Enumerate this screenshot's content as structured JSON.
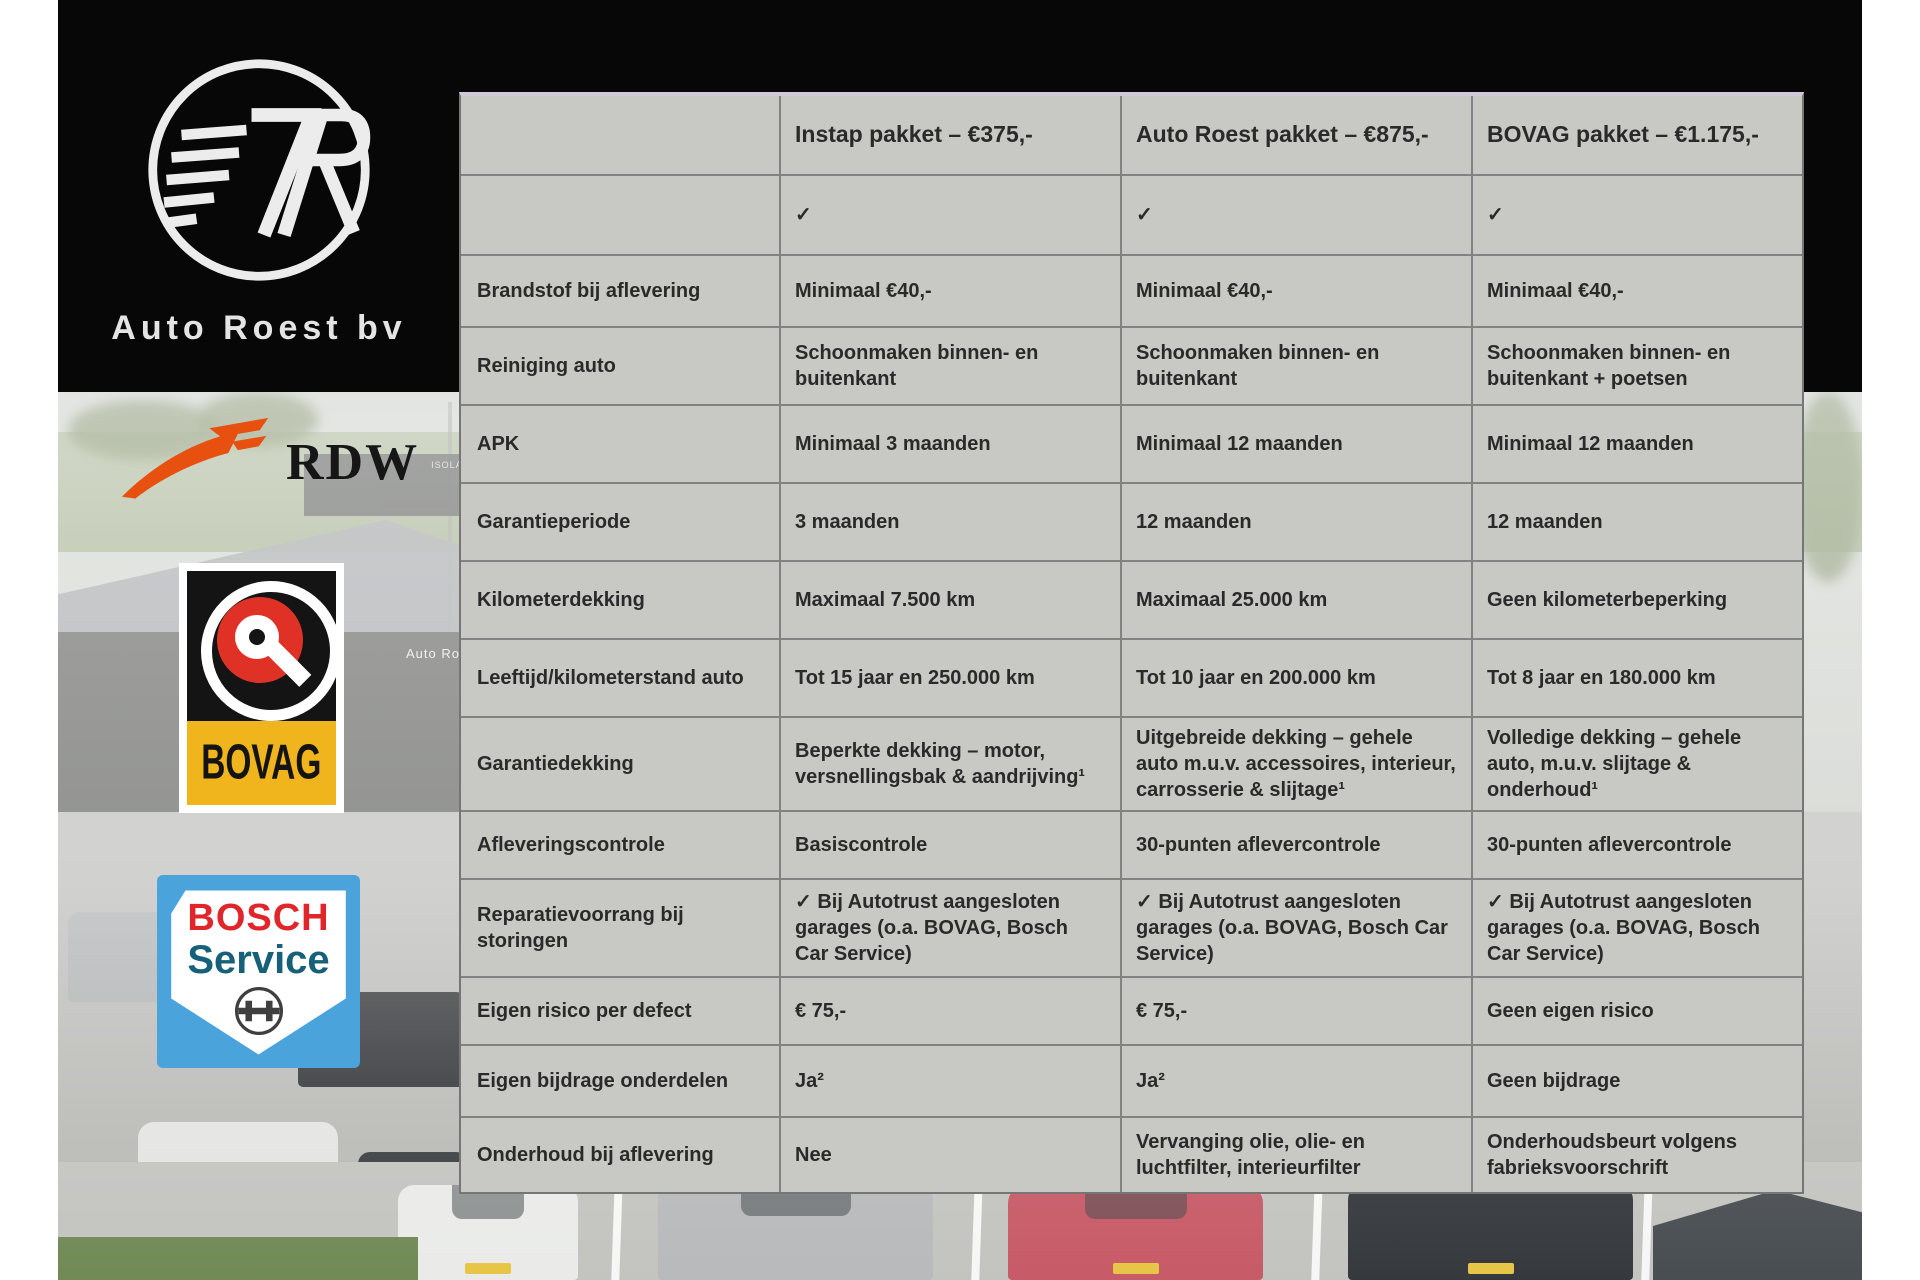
{
  "brand": {
    "name": "Auto Roest bv",
    "monogram": "7R"
  },
  "background_signs": {
    "showroom_sign": "Auto Ro",
    "distant_sign": "ISOLATIEBAL.NL"
  },
  "partners": {
    "rdw": {
      "label": "RDW",
      "accent": "#e8500f"
    },
    "bovag": {
      "label": "BOVAG",
      "red": "#e03127",
      "yellow": "#f0b41c"
    },
    "bosch": {
      "line1": "BOSCH",
      "line2": "Service",
      "red": "#e0262a",
      "blue": "#4ba3dc",
      "teal": "#176079"
    }
  },
  "table": {
    "columns": [
      "",
      "Instap pakket – €375,-",
      "Auto Roest pakket – €875,-",
      "BOVAG pakket – €1.175,-"
    ],
    "rows": [
      {
        "label": "",
        "values": [
          "✓",
          "✓",
          "✓"
        ]
      },
      {
        "label": "Brandstof bij aflevering",
        "values": [
          "Minimaal €40,-",
          "Minimaal €40,-",
          "Minimaal €40,-"
        ]
      },
      {
        "label": "Reiniging auto",
        "values": [
          "Schoonmaken binnen- en buitenkant",
          "Schoonmaken binnen- en buitenkant",
          "Schoonmaken binnen- en buitenkant + poetsen"
        ]
      },
      {
        "label": "APK",
        "values": [
          "Minimaal 3 maanden",
          "Minimaal 12 maanden",
          "Minimaal 12 maanden"
        ]
      },
      {
        "label": "Garantieperiode",
        "values": [
          "3 maanden",
          "12 maanden",
          "12 maanden"
        ]
      },
      {
        "label": "Kilometerdekking",
        "values": [
          "Maximaal 7.500 km",
          "Maximaal 25.000 km",
          "Geen kilometerbeperking"
        ]
      },
      {
        "label": "Leeftijd/kilometerstand auto",
        "values": [
          "Tot 15 jaar en 250.000 km",
          "Tot 10 jaar en 200.000 km",
          "Tot 8 jaar en 180.000 km"
        ]
      },
      {
        "label": "Garantiedekking",
        "values": [
          "Beperkte dekking – motor, versnellingsbak & aandrijving¹",
          "Uitgebreide dekking – gehele auto m.u.v. accessoires, interieur, carrosserie & slijtage¹",
          "Volledige dekking – gehele auto, m.u.v. slijtage & onderhoud¹"
        ]
      },
      {
        "label": "Afleveringscontrole",
        "values": [
          "Basiscontrole",
          "30-punten aflevercontrole",
          "30-punten aflevercontrole"
        ]
      },
      {
        "label": "Reparatievoorrang bij storingen",
        "values": [
          "✓ Bij Autotrust aangesloten garages (o.a. BOVAG, Bosch Car Service)",
          "✓ Bij Autotrust aangesloten garages (o.a. BOVAG, Bosch Car Service)",
          "✓ Bij Autotrust aangesloten garages (o.a. BOVAG, Bosch Car Service)"
        ]
      },
      {
        "label": "Eigen risico per defect",
        "values": [
          "€ 75,-",
          "€ 75,-",
          "Geen eigen risico"
        ]
      },
      {
        "label": "Eigen bijdrage onderdelen",
        "values": [
          "Ja²",
          "Ja²",
          "Geen bijdrage"
        ]
      },
      {
        "label": "Onderhoud bij aflevering",
        "values": [
          "Nee",
          "Vervanging olie, olie- en luchtfilter, interieurfilter",
          "Onderhoudsbeurt volgens fabrieksvoorschrift"
        ]
      }
    ]
  }
}
